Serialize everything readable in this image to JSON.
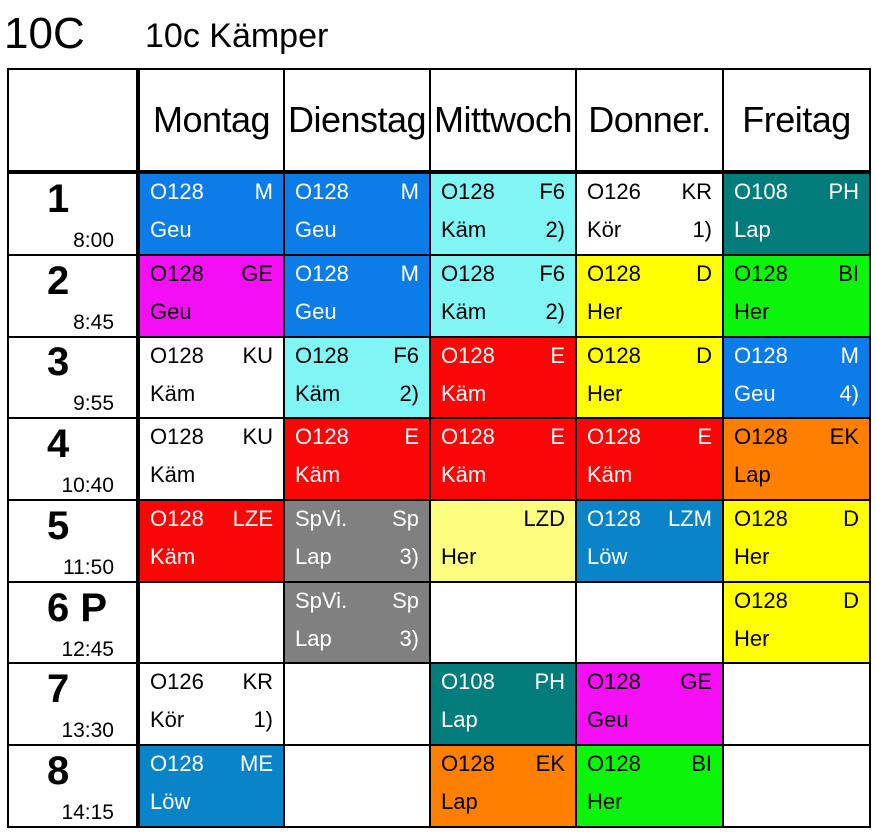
{
  "header": {
    "class_code": "10C",
    "class_title": "10c Kämper"
  },
  "days": [
    "Montag",
    "Dienstag",
    "Mittwoch",
    "Donner.",
    "Freitag"
  ],
  "colors": {
    "blue": "#0c7ce8",
    "cyan": "#7ff5f4",
    "teal": "#037c7c",
    "magenta": "#f50ff5",
    "yellow": "#ffff00",
    "green": "#0af50a",
    "red": "#fa0606",
    "orange": "#ff7f00",
    "grey": "#808080",
    "lightyellow": "#fdfd7f",
    "steel": "#0a84c8"
  },
  "periods": [
    {
      "num": "1",
      "time": "8:00"
    },
    {
      "num": "2",
      "time": "8:45"
    },
    {
      "num": "3",
      "time": "9:55"
    },
    {
      "num": "4",
      "time": "10:40"
    },
    {
      "num": "5",
      "time": "11:50"
    },
    {
      "num": "6 P",
      "time": "12:45"
    },
    {
      "num": "7",
      "time": "13:30"
    },
    {
      "num": "8",
      "time": "14:15"
    }
  ],
  "lessons": [
    [
      {
        "room": "O128",
        "subject": "M",
        "teacher": "Geu",
        "note": "",
        "color": "blue"
      },
      {
        "room": "O128",
        "subject": "M",
        "teacher": "Geu",
        "note": "",
        "color": "blue"
      },
      {
        "room": "O128",
        "subject": "F6",
        "teacher": "Käm",
        "note": "2)",
        "color": "cyan"
      },
      {
        "room": "O126",
        "subject": "KR",
        "teacher": "Kör",
        "note": "1)",
        "color": "white"
      },
      {
        "room": "O108",
        "subject": "PH",
        "teacher": "Lap",
        "note": "",
        "color": "teal"
      }
    ],
    [
      {
        "room": "O128",
        "subject": "GE",
        "teacher": "Geu",
        "note": "",
        "color": "magenta"
      },
      {
        "room": "O128",
        "subject": "M",
        "teacher": "Geu",
        "note": "",
        "color": "blue"
      },
      {
        "room": "O128",
        "subject": "F6",
        "teacher": "Käm",
        "note": "2)",
        "color": "cyan"
      },
      {
        "room": "O128",
        "subject": "D",
        "teacher": "Her",
        "note": "",
        "color": "yellow"
      },
      {
        "room": "O128",
        "subject": "BI",
        "teacher": "Her",
        "note": "",
        "color": "green"
      }
    ],
    [
      {
        "room": "O128",
        "subject": "KU",
        "teacher": "Käm",
        "note": "",
        "color": "white"
      },
      {
        "room": "O128",
        "subject": "F6",
        "teacher": "Käm",
        "note": "2)",
        "color": "cyan"
      },
      {
        "room": "O128",
        "subject": "E",
        "teacher": "Käm",
        "note": "",
        "color": "red"
      },
      {
        "room": "O128",
        "subject": "D",
        "teacher": "Her",
        "note": "",
        "color": "yellow"
      },
      {
        "room": "O128",
        "subject": "M",
        "teacher": "Geu",
        "note": "4)",
        "color": "blue"
      }
    ],
    [
      {
        "room": "O128",
        "subject": "KU",
        "teacher": "Käm",
        "note": "",
        "color": "white"
      },
      {
        "room": "O128",
        "subject": "E",
        "teacher": "Käm",
        "note": "",
        "color": "red"
      },
      {
        "room": "O128",
        "subject": "E",
        "teacher": "Käm",
        "note": "",
        "color": "red"
      },
      {
        "room": "O128",
        "subject": "E",
        "teacher": "Käm",
        "note": "",
        "color": "red"
      },
      {
        "room": "O128",
        "subject": "EK",
        "teacher": "Lap",
        "note": "",
        "color": "orange"
      }
    ],
    [
      {
        "room": "O128",
        "subject": "LZE",
        "teacher": "Käm",
        "note": "",
        "color": "red"
      },
      {
        "room": "SpVi.",
        "subject": "Sp",
        "teacher": "Lap",
        "note": "3)",
        "color": "grey"
      },
      {
        "room": "",
        "subject": "LZD",
        "teacher": "Her",
        "note": "",
        "color": "lightyellow"
      },
      {
        "room": "O128",
        "subject": "LZM",
        "teacher": "Löw",
        "note": "",
        "color": "steel"
      },
      {
        "room": "O128",
        "subject": "D",
        "teacher": "Her",
        "note": "",
        "color": "yellow"
      }
    ],
    [
      null,
      {
        "room": "SpVi.",
        "subject": "Sp",
        "teacher": "Lap",
        "note": "3)",
        "color": "grey"
      },
      null,
      null,
      {
        "room": "O128",
        "subject": "D",
        "teacher": "Her",
        "note": "",
        "color": "yellow"
      }
    ],
    [
      {
        "room": "O126",
        "subject": "KR",
        "teacher": "Kör",
        "note": "1)",
        "color": "white"
      },
      null,
      {
        "room": "O108",
        "subject": "PH",
        "teacher": "Lap",
        "note": "",
        "color": "teal"
      },
      {
        "room": "O128",
        "subject": "GE",
        "teacher": "Geu",
        "note": "",
        "color": "magenta"
      },
      null
    ],
    [
      {
        "room": "O128",
        "subject": "ME",
        "teacher": "Löw",
        "note": "",
        "color": "steel"
      },
      null,
      {
        "room": "O128",
        "subject": "EK",
        "teacher": "Lap",
        "note": "",
        "color": "orange"
      },
      {
        "room": "O128",
        "subject": "BI",
        "teacher": "Her",
        "note": "",
        "color": "green"
      },
      null
    ]
  ]
}
